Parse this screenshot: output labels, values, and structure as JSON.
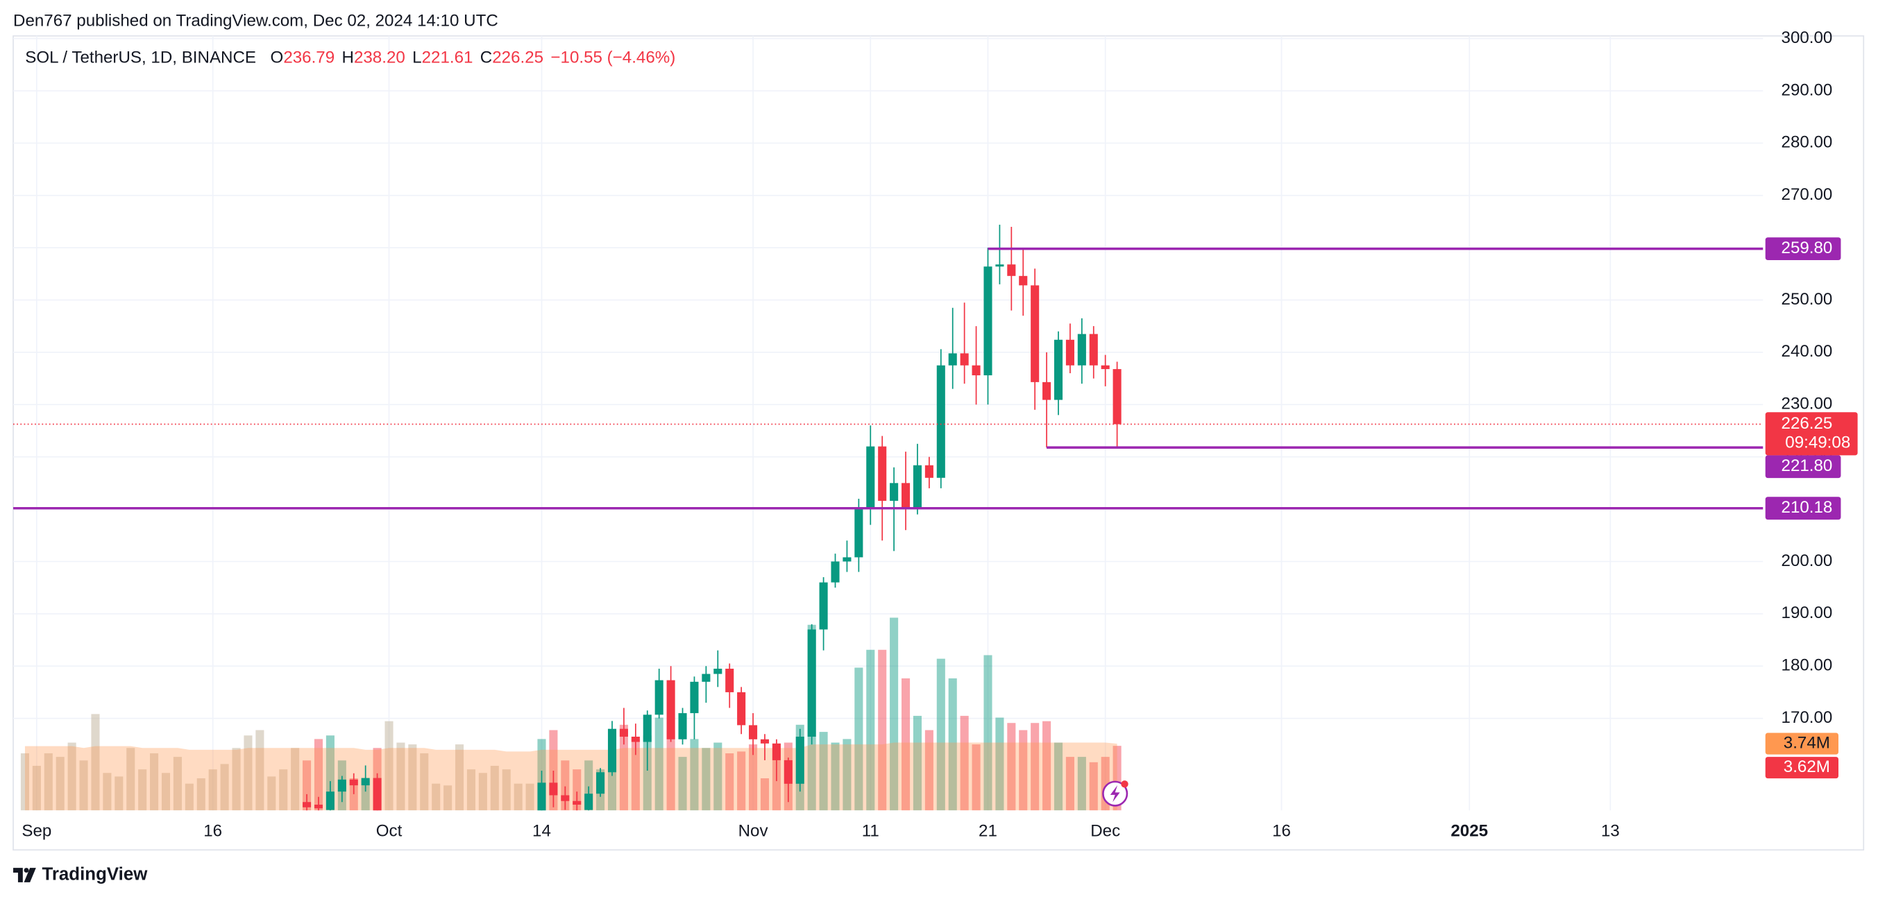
{
  "header": "Den767 published on TradingView.com, Dec 02, 2024 14:10 UTC",
  "footer": "TradingView",
  "legend": {
    "symbol": "SOL / TetherUS, 1D, BINANCE",
    "items": [
      {
        "key": "O",
        "value": "236.79"
      },
      {
        "key": "H",
        "value": "238.20"
      },
      {
        "key": "L",
        "value": "221.61"
      },
      {
        "key": "C",
        "value": "226.25"
      }
    ],
    "change": "−10.55 (−4.46%)"
  },
  "chart_data": {
    "type": "candlestick",
    "up_color": "#089981",
    "down_color": "#f23645",
    "level_color": "#9c27b0",
    "volume_ma_color": "#ff9850",
    "grid": true,
    "x": [
      "2024-08-31",
      "2024-09-01",
      "2024-09-02",
      "2024-09-03",
      "2024-09-04",
      "2024-09-05",
      "2024-09-06",
      "2024-09-07",
      "2024-09-08",
      "2024-09-09",
      "2024-09-10",
      "2024-09-11",
      "2024-09-12",
      "2024-09-13",
      "2024-09-14",
      "2024-09-15",
      "2024-09-16",
      "2024-09-17",
      "2024-09-18",
      "2024-09-19",
      "2024-09-20",
      "2024-09-21",
      "2024-09-22",
      "2024-09-23",
      "2024-09-24",
      "2024-09-25",
      "2024-09-26",
      "2024-09-27",
      "2024-09-28",
      "2024-09-29",
      "2024-09-30",
      "2024-10-01",
      "2024-10-02",
      "2024-10-03",
      "2024-10-04",
      "2024-10-05",
      "2024-10-06",
      "2024-10-07",
      "2024-10-08",
      "2024-10-09",
      "2024-10-10",
      "2024-10-11",
      "2024-10-12",
      "2024-10-13",
      "2024-10-14",
      "2024-10-15",
      "2024-10-16",
      "2024-10-17",
      "2024-10-18",
      "2024-10-19",
      "2024-10-20",
      "2024-10-21",
      "2024-10-22",
      "2024-10-23",
      "2024-10-24",
      "2024-10-25",
      "2024-10-26",
      "2024-10-27",
      "2024-10-28",
      "2024-10-29",
      "2024-10-30",
      "2024-10-31",
      "2024-11-01",
      "2024-11-02",
      "2024-11-03",
      "2024-11-04",
      "2024-11-05",
      "2024-11-06",
      "2024-11-07",
      "2024-11-08",
      "2024-11-09",
      "2024-11-10",
      "2024-11-11",
      "2024-11-12",
      "2024-11-13",
      "2024-11-14",
      "2024-11-15",
      "2024-11-16",
      "2024-11-17",
      "2024-11-18",
      "2024-11-19",
      "2024-11-20",
      "2024-11-21",
      "2024-11-22",
      "2024-11-23",
      "2024-11-24",
      "2024-11-25",
      "2024-11-26",
      "2024-11-27",
      "2024-11-28",
      "2024-11-29",
      "2024-11-30",
      "2024-12-01",
      "2024-12-02"
    ],
    "open": [
      null,
      null,
      null,
      null,
      null,
      null,
      null,
      null,
      null,
      null,
      null,
      null,
      null,
      null,
      null,
      null,
      null,
      null,
      null,
      null,
      null,
      null,
      null,
      null,
      154,
      153.5,
      152.5,
      156,
      158.3,
      157.2,
      158.6,
      null,
      null,
      null,
      null,
      null,
      null,
      null,
      null,
      null,
      null,
      null,
      null,
      null,
      151.5,
      157.7,
      155.3,
      154.2,
      152.5,
      155.6,
      159.7,
      168,
      166.5,
      165.5,
      170.7,
      177.3,
      166,
      171,
      177,
      178.5,
      179.5,
      175,
      168.7,
      166,
      165.2,
      162,
      157.5,
      166.5,
      187,
      196,
      200,
      200.8,
      210,
      222,
      211.6,
      215,
      210,
      218.4,
      216,
      237.5,
      239.8,
      237.5,
      235.6,
      256.4,
      256.8,
      254.6,
      252.8,
      234.3,
      230.9,
      242.4,
      237.5,
      243.5,
      237.5,
      236.79
    ],
    "high": [
      null,
      null,
      null,
      null,
      null,
      null,
      null,
      null,
      null,
      null,
      null,
      null,
      null,
      null,
      null,
      null,
      null,
      null,
      null,
      null,
      null,
      null,
      null,
      null,
      155.5,
      155,
      158,
      159,
      159.5,
      161,
      159.5,
      null,
      null,
      null,
      null,
      null,
      null,
      null,
      null,
      null,
      null,
      null,
      null,
      null,
      160,
      160,
      157,
      156,
      157,
      160.5,
      169.5,
      172,
      169,
      171.5,
      179.5,
      180,
      172,
      178,
      180,
      183,
      180.5,
      176,
      171,
      167,
      166,
      162.5,
      168,
      188,
      197,
      201.5,
      204,
      212,
      226,
      224,
      218,
      221,
      222.5,
      220,
      240.6,
      248.5,
      249.5,
      245,
      260,
      264.4,
      264,
      259.8,
      256,
      240,
      244,
      245.5,
      246.5,
      245,
      239.5,
      238.2
    ],
    "low": [
      null,
      null,
      null,
      null,
      null,
      null,
      null,
      null,
      null,
      null,
      null,
      null,
      null,
      null,
      null,
      null,
      null,
      null,
      null,
      null,
      null,
      null,
      null,
      null,
      152,
      150,
      150,
      154,
      155.5,
      156,
      151,
      null,
      null,
      null,
      null,
      null,
      null,
      null,
      null,
      null,
      null,
      null,
      null,
      null,
      149,
      153,
      152.5,
      150,
      151,
      155,
      159,
      165,
      163,
      160,
      170,
      165.5,
      165,
      166,
      173,
      176,
      172,
      167,
      163,
      162,
      158,
      154,
      156,
      165,
      183,
      195,
      198,
      198,
      207,
      204,
      202,
      206,
      209,
      214,
      214,
      233,
      234,
      230,
      230,
      253,
      248,
      247,
      229,
      221.8,
      228,
      236,
      234,
      235,
      233.5,
      221.61
    ],
    "close": [
      null,
      null,
      null,
      null,
      null,
      null,
      null,
      null,
      null,
      null,
      null,
      null,
      null,
      null,
      null,
      null,
      null,
      null,
      null,
      null,
      null,
      null,
      null,
      null,
      153,
      152.8,
      156,
      158.3,
      157.2,
      158.6,
      151.5,
      null,
      null,
      null,
      null,
      null,
      null,
      null,
      null,
      null,
      null,
      null,
      null,
      null,
      157.7,
      155.3,
      154.2,
      153.5,
      155.6,
      159.7,
      168,
      166.5,
      165.5,
      170.7,
      177.3,
      166,
      171,
      177,
      178.5,
      179.5,
      175,
      168.7,
      166,
      165.2,
      162,
      157.5,
      166.5,
      187,
      196,
      200,
      200.8,
      210,
      222,
      211.6,
      215,
      210,
      218.4,
      216,
      237.5,
      239.8,
      237.5,
      235.6,
      256.4,
      256.8,
      254.6,
      252.8,
      234.3,
      230.9,
      242.4,
      237.5,
      243.5,
      237.5,
      236.79,
      226.25
    ],
    "volume": [
      3.2,
      2.5,
      3.2,
      3.0,
      3.8,
      2.8,
      5.4,
      2.1,
      1.9,
      3.5,
      2.3,
      3.2,
      2.1,
      3.0,
      1.5,
      1.8,
      2.3,
      2.6,
      3.5,
      4.2,
      4.5,
      1.9,
      2.3,
      3.5,
      2.8,
      4.0,
      4.2,
      2.8,
      1.8,
      1.7,
      3.5,
      5.0,
      3.8,
      3.7,
      3.2,
      1.5,
      1.4,
      3.7,
      2.3,
      2.1,
      2.5,
      2.3,
      1.5,
      1.5,
      4.0,
      4.5,
      2.8,
      2.3,
      2.8,
      2.3,
      4.5,
      4.8,
      4.0,
      4.2,
      5.2,
      4.5,
      3.0,
      4.0,
      3.5,
      3.8,
      3.2,
      3.3,
      3.7,
      1.8,
      3.5,
      3.8,
      4.8,
      10.4,
      4.4,
      3.8,
      4.0,
      8.0,
      9.0,
      9.0,
      10.8,
      7.4,
      5.3,
      4.5,
      8.5,
      7.4,
      5.3,
      3.7,
      8.7,
      5.2,
      4.9,
      4.5,
      4.9,
      5.0,
      3.8,
      3.0,
      3.0,
      2.7,
      3.0,
      3.62
    ],
    "volume_ma": [
      3.6,
      3.6,
      3.6,
      3.6,
      3.6,
      3.5,
      3.6,
      3.6,
      3.6,
      3.6,
      3.5,
      3.5,
      3.5,
      3.5,
      3.4,
      3.4,
      3.4,
      3.4,
      3.4,
      3.5,
      3.5,
      3.5,
      3.5,
      3.5,
      3.5,
      3.5,
      3.5,
      3.5,
      3.5,
      3.4,
      3.4,
      3.5,
      3.5,
      3.5,
      3.5,
      3.4,
      3.4,
      3.4,
      3.4,
      3.4,
      3.4,
      3.3,
      3.3,
      3.3,
      3.4,
      3.4,
      3.4,
      3.4,
      3.4,
      3.4,
      3.4,
      3.5,
      3.5,
      3.5,
      3.5,
      3.5,
      3.5,
      3.5,
      3.5,
      3.5,
      3.5,
      3.5,
      3.5,
      3.5,
      3.5,
      3.5,
      3.5,
      3.7,
      3.7,
      3.7,
      3.7,
      3.7,
      3.7,
      3.7,
      3.8,
      3.8,
      3.8,
      3.8,
      3.8,
      3.8,
      3.8,
      3.8,
      3.8,
      3.8,
      3.8,
      3.8,
      3.8,
      3.8,
      3.8,
      3.8,
      3.8,
      3.8,
      3.8,
      3.74
    ],
    "volume_label": "3.62M",
    "volume_ma_label": "3.74M",
    "volume_ylim": [
      0,
      43.4
    ],
    "countdown": "09:49:08",
    "levels": [
      {
        "value": 259.8,
        "label": "259.80",
        "start": "2024-11-21"
      },
      {
        "value": 221.8,
        "label": "221.80",
        "start": "2024-11-26"
      },
      {
        "value": 210.18,
        "label": "210.18",
        "start": "2024-08-30"
      }
    ],
    "xlim": [
      "2024-08-30",
      "2025-01-26"
    ],
    "xticks": [
      {
        "value": "2024-09-01",
        "label": "Sep"
      },
      {
        "value": "2024-09-16",
        "label": "16"
      },
      {
        "value": "2024-10-01",
        "label": "Oct"
      },
      {
        "value": "2024-10-14",
        "label": "14"
      },
      {
        "value": "2024-11-01",
        "label": "Nov"
      },
      {
        "value": "2024-11-11",
        "label": "11"
      },
      {
        "value": "2024-11-21",
        "label": "21"
      },
      {
        "value": "2024-12-01",
        "label": "Dec"
      },
      {
        "value": "2024-12-16",
        "label": "16"
      },
      {
        "value": "2025-01-01",
        "label": "2025"
      },
      {
        "value": "2025-01-13",
        "label": "13"
      }
    ],
    "ylim": [
      152.4,
      300.5
    ],
    "yticks": [
      {
        "value": 170,
        "label": "170.00"
      },
      {
        "value": 180,
        "label": "180.00"
      },
      {
        "value": 190,
        "label": "190.00"
      },
      {
        "value": 200,
        "label": "200.00"
      },
      {
        "value": 210,
        "label": "210.00"
      },
      {
        "value": 220,
        "label": "220.00"
      },
      {
        "value": 230,
        "label": "230.00"
      },
      {
        "value": 240,
        "label": "240.00"
      },
      {
        "value": 250,
        "label": "250.00"
      },
      {
        "value": 260,
        "label": "260.00"
      },
      {
        "value": 270,
        "label": "270.00"
      },
      {
        "value": 280,
        "label": "280.00"
      },
      {
        "value": 290,
        "label": "290.00"
      },
      {
        "value": 300,
        "label": "300.00"
      }
    ]
  }
}
